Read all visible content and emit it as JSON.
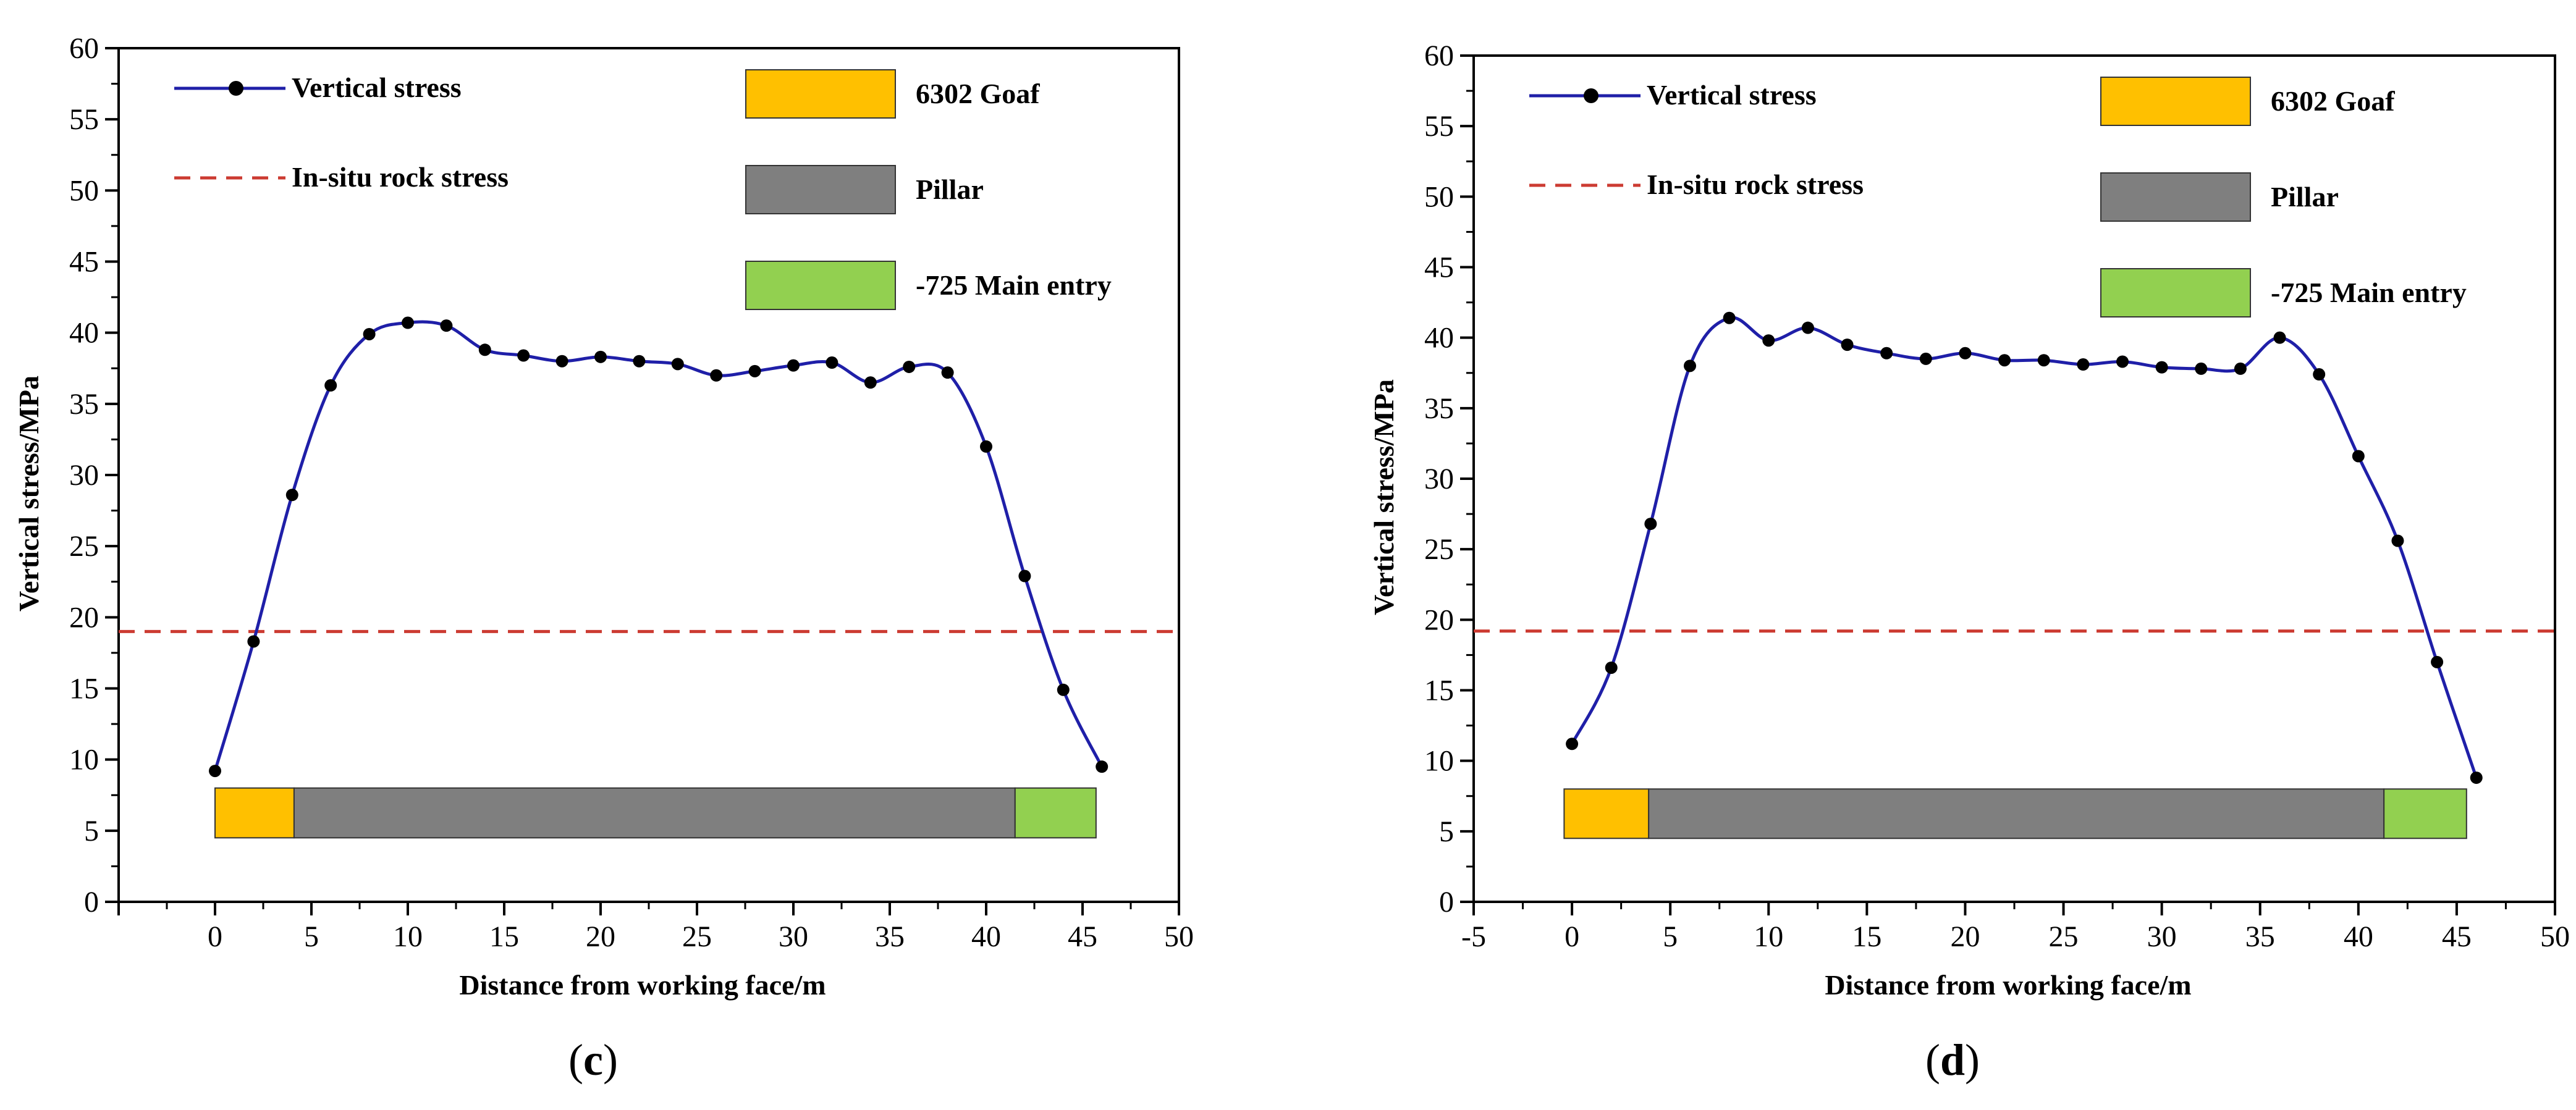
{
  "colors": {
    "curve": "#1f1fa8",
    "point": "#000000",
    "insitu": "#cc3b32",
    "goaf": "#ffc000",
    "pillar": "#7f7f7f",
    "entry": "#92d050"
  },
  "chart_data": [
    {
      "type": "line",
      "caption_open": "(",
      "caption_letter": "c",
      "caption_close": ")",
      "xlabel": "Distance from working face/m",
      "ylabel": "Vertical stress/MPa",
      "xlim": [
        -5,
        50
      ],
      "ylim": [
        0,
        60
      ],
      "xticks": [
        0,
        5,
        10,
        15,
        20,
        25,
        30,
        35,
        40,
        45,
        50
      ],
      "yticks": [
        0,
        5,
        10,
        15,
        20,
        25,
        30,
        35,
        40,
        45,
        50,
        55,
        60
      ],
      "series": [
        {
          "name": "Vertical stress",
          "x": [
            0,
            2,
            4,
            6,
            8,
            10,
            12,
            14,
            16,
            18,
            20,
            22,
            24,
            26,
            28,
            30,
            32,
            34,
            36,
            38,
            40,
            42,
            44,
            46
          ],
          "y": [
            9.2,
            18.3,
            28.6,
            36.3,
            39.9,
            40.7,
            40.5,
            38.8,
            38.4,
            38.0,
            38.3,
            38.0,
            37.8,
            37.0,
            37.3,
            37.7,
            37.9,
            36.5,
            37.6,
            37.2,
            32.0,
            22.9,
            14.9,
            9.5
          ]
        }
      ],
      "reference_line": {
        "name": "In-situ rock stress",
        "y": 19.0
      },
      "zones": [
        {
          "name": "6302 Goaf",
          "from": 0,
          "to": 4.1,
          "color_key": "goaf"
        },
        {
          "name": "Pillar",
          "from": 4.1,
          "to": 41.5,
          "color_key": "pillar"
        },
        {
          "name": "-725 Main entry",
          "from": 41.5,
          "to": 45.7,
          "color_key": "entry"
        }
      ],
      "zone_band": [
        4.5,
        8.0
      ]
    },
    {
      "type": "line",
      "caption_open": "(",
      "caption_letter": "d",
      "caption_close": ")",
      "xlabel": "Distance from working face/m",
      "ylabel": "Vertical stress/MPa",
      "xlim": [
        -5,
        50
      ],
      "ylim": [
        0,
        60
      ],
      "xticks": [
        -5,
        0,
        5,
        10,
        15,
        20,
        25,
        30,
        35,
        40,
        45,
        50
      ],
      "yticks": [
        0,
        5,
        10,
        15,
        20,
        25,
        30,
        35,
        40,
        45,
        50,
        55,
        60
      ],
      "series": [
        {
          "name": "Vertical stress",
          "x": [
            0,
            2,
            4,
            6,
            8,
            10,
            12,
            14,
            16,
            18,
            20,
            22,
            24,
            26,
            28,
            30,
            32,
            34,
            36,
            38,
            40,
            42,
            44,
            46
          ],
          "y": [
            11.2,
            16.6,
            26.8,
            38.0,
            41.4,
            39.8,
            40.7,
            39.5,
            38.9,
            38.5,
            38.9,
            38.4,
            38.4,
            38.1,
            38.3,
            37.9,
            37.8,
            37.8,
            40.0,
            37.4,
            31.6,
            25.6,
            17.0,
            8.8
          ]
        }
      ],
      "reference_line": {
        "name": "In-situ rock stress",
        "y": 19.2
      },
      "zones": [
        {
          "name": "6302 Goaf",
          "from": -0.4,
          "to": 3.9,
          "color_key": "goaf"
        },
        {
          "name": "Pillar",
          "from": 3.9,
          "to": 41.3,
          "color_key": "pillar"
        },
        {
          "name": "-725 Main entry",
          "from": 41.3,
          "to": 45.5,
          "color_key": "entry"
        }
      ],
      "zone_band": [
        4.5,
        8.0
      ]
    }
  ]
}
